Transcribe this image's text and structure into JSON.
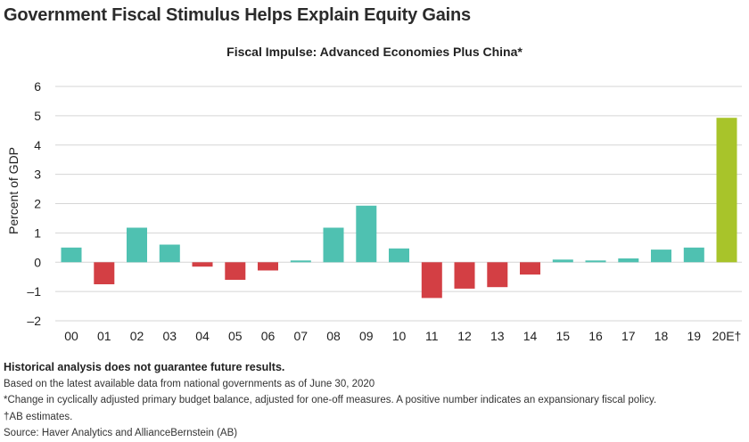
{
  "page": {
    "title": "Government Fiscal Stimulus Helps Explain Equity Gains"
  },
  "chart_data": {
    "type": "bar",
    "title": "Fiscal Impulse: Advanced Economies Plus China*",
    "xlabel": "",
    "ylabel": "Percent of GDP",
    "ylim": [
      -2,
      6
    ],
    "yticks": [
      6,
      5,
      4,
      3,
      2,
      1,
      0,
      -1,
      -2
    ],
    "ytick_labels": [
      "6",
      "5",
      "4",
      "3",
      "2",
      "1",
      "0",
      "–1",
      "–2"
    ],
    "grid": true,
    "categories": [
      "00",
      "01",
      "02",
      "03",
      "04",
      "05",
      "06",
      "07",
      "08",
      "09",
      "10",
      "11",
      "12",
      "13",
      "14",
      "15",
      "16",
      "17",
      "18",
      "19",
      "20E†"
    ],
    "values": [
      0.5,
      -0.75,
      1.18,
      0.6,
      -0.15,
      -0.6,
      -0.28,
      0.06,
      1.18,
      1.93,
      0.47,
      -1.22,
      -0.9,
      -0.85,
      -0.42,
      0.09,
      0.06,
      0.13,
      0.43,
      0.5,
      4.93
    ],
    "colors": {
      "positive": "#4fc1b1",
      "negative": "#d33f44",
      "estimate": "#a8c42a",
      "grid": "#d5d5d5"
    }
  },
  "notes": {
    "disclaimer": "Historical analysis does not guarantee future results.",
    "basis": "Based on the latest available data from national governments as of June 30, 2020",
    "footnote_star": "*Change in cyclically adjusted primary budget balance, adjusted for one-off measures. A positive number indicates an expansionary fiscal policy.",
    "footnote_dagger": "†AB estimates.",
    "source": "Source: Haver Analytics and AllianceBernstein (AB)"
  }
}
